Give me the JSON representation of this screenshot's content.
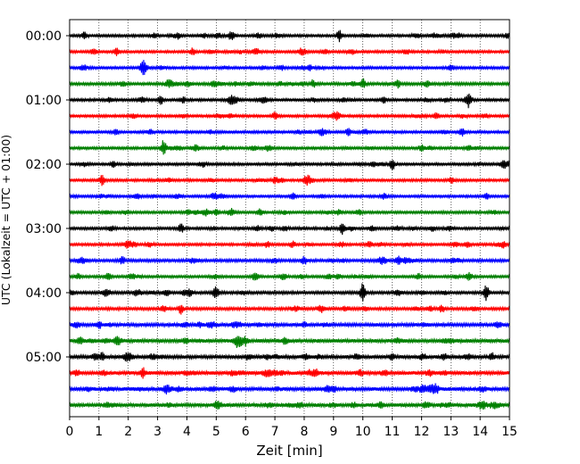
{
  "chart_data": {
    "type": "line",
    "title": "",
    "xlabel": "Zeit  [min]",
    "ylabel": "UTC (Lokalzeit = UTC + 01:00)",
    "xlim": [
      0,
      15
    ],
    "x_ticks": [
      0,
      1,
      2,
      3,
      4,
      5,
      6,
      7,
      8,
      9,
      10,
      11,
      12,
      13,
      14,
      15
    ],
    "y_tick_labels": [
      "00:00",
      "01:00",
      "02:00",
      "03:00",
      "04:00",
      "05:00"
    ],
    "y_tick_row_indices": [
      0,
      4,
      8,
      12,
      16,
      20
    ],
    "grid": "vertical dotted at each minute",
    "row_colors": [
      "#000000",
      "#ff0000",
      "#0000ff",
      "#008000"
    ],
    "rows": [
      {
        "start": "00:00",
        "amplitude": 0.9,
        "events": [
          [
            0.5,
            2.0
          ],
          [
            9.2,
            3.0
          ],
          [
            3.7,
            1.5
          ]
        ]
      },
      {
        "start": "00:15",
        "amplitude": 0.9,
        "events": [
          [
            1.6,
            2.2
          ],
          [
            4.2,
            1.8
          ]
        ]
      },
      {
        "start": "00:30",
        "amplitude": 0.9,
        "events": [
          [
            2.5,
            4.0
          ],
          [
            8.2,
            1.5
          ]
        ]
      },
      {
        "start": "00:45",
        "amplitude": 1.0,
        "events": [
          [
            8.3,
            2.0
          ],
          [
            10.0,
            2.6
          ],
          [
            11.2,
            1.8
          ]
        ]
      },
      {
        "start": "01:00",
        "amplitude": 0.9,
        "events": [
          [
            3.1,
            2.6
          ],
          [
            10.7,
            1.6
          ],
          [
            13.6,
            2.6
          ]
        ]
      },
      {
        "start": "01:15",
        "amplitude": 0.9,
        "events": [
          [
            7.0,
            1.8
          ],
          [
            12.5,
            1.6
          ]
        ]
      },
      {
        "start": "01:30",
        "amplitude": 0.9,
        "events": [
          [
            9.5,
            1.7
          ],
          [
            13.4,
            1.5
          ]
        ]
      },
      {
        "start": "01:45",
        "amplitude": 0.9,
        "events": [
          [
            3.2,
            4.0
          ],
          [
            12.0,
            1.5
          ]
        ]
      },
      {
        "start": "02:00",
        "amplitude": 0.9,
        "events": [
          [
            11.0,
            3.0
          ],
          [
            1.5,
            1.5
          ]
        ]
      },
      {
        "start": "02:15",
        "amplitude": 0.9,
        "events": [
          [
            1.1,
            1.8
          ],
          [
            7.0,
            1.6
          ]
        ]
      },
      {
        "start": "02:30",
        "amplitude": 0.9,
        "events": [
          [
            7.6,
            1.8
          ],
          [
            14.2,
            1.6
          ]
        ]
      },
      {
        "start": "02:45",
        "amplitude": 0.9,
        "events": [
          [
            5.0,
            1.8
          ],
          [
            6.5,
            2.0
          ]
        ]
      },
      {
        "start": "03:00",
        "amplitude": 0.9,
        "events": [
          [
            9.3,
            3.0
          ],
          [
            3.8,
            1.5
          ]
        ]
      },
      {
        "start": "03:15",
        "amplitude": 0.9,
        "events": [
          [
            7.6,
            1.8
          ],
          [
            14.8,
            1.6
          ]
        ]
      },
      {
        "start": "03:30",
        "amplitude": 1.0,
        "events": [
          [
            1.8,
            2.0
          ],
          [
            8.0,
            2.4
          ],
          [
            11.2,
            2.2
          ]
        ]
      },
      {
        "start": "03:45",
        "amplitude": 0.9,
        "events": [
          [
            6.3,
            1.6
          ],
          [
            11.9,
            1.5
          ]
        ]
      },
      {
        "start": "04:00",
        "amplitude": 1.0,
        "events": [
          [
            10.0,
            5.2
          ],
          [
            14.2,
            4.2
          ],
          [
            5.0,
            1.8
          ],
          [
            4.1,
            1.6
          ]
        ]
      },
      {
        "start": "04:15",
        "amplitude": 1.0,
        "events": [
          [
            3.8,
            2.6
          ],
          [
            12.7,
            1.8
          ]
        ]
      },
      {
        "start": "04:30",
        "amplitude": 1.2,
        "events": [
          [
            1.0,
            1.8
          ],
          [
            8.0,
            1.5
          ]
        ]
      },
      {
        "start": "04:45",
        "amplitude": 1.3,
        "events": [
          [
            1.6,
            1.8
          ],
          [
            6.0,
            2.0
          ]
        ]
      },
      {
        "start": "05:00",
        "amplitude": 1.2,
        "events": [
          [
            1.1,
            2.2
          ],
          [
            11.0,
            2.0
          ],
          [
            14.4,
            1.8
          ]
        ]
      },
      {
        "start": "05:15",
        "amplitude": 1.3,
        "events": [
          [
            2.5,
            2.5
          ],
          [
            8.4,
            1.6
          ]
        ]
      },
      {
        "start": "05:30",
        "amplitude": 1.3,
        "events": [
          [
            3.3,
            2.0
          ],
          [
            9.0,
            1.6
          ],
          [
            12.5,
            1.6
          ]
        ]
      },
      {
        "start": "05:45",
        "amplitude": 1.3,
        "events": [
          [
            5.0,
            1.5
          ],
          [
            10.6,
            1.5
          ]
        ]
      }
    ]
  }
}
